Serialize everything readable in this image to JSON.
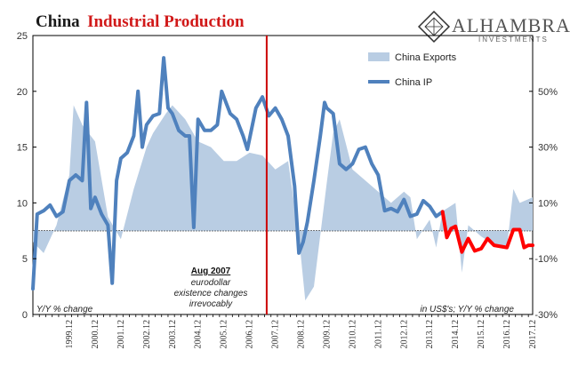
{
  "title_part1": "China",
  "title_part2": "Industrial Production",
  "brand": {
    "name": "ALHAMBRA",
    "sub": "INVESTMENTS"
  },
  "legend": {
    "exports": "China Exports",
    "ip": "China IP"
  },
  "annotation": {
    "heading": "Aug 2007",
    "line1": "eurodollar",
    "line2": "existence changes",
    "line3": "irrevocably"
  },
  "left_note": "Y/Y % change",
  "right_note": "in US$'s; Y/Y % change",
  "colors": {
    "exports": "#b9cde3",
    "ip": "#4f81bd",
    "ip_recent": "#ff0000",
    "event_line": "#cc0000",
    "zero_line": "#000000"
  },
  "chart_data": {
    "type": "line",
    "title": "China Industrial Production",
    "y_left": {
      "min": 0,
      "max": 25,
      "ticks": [
        0,
        5,
        10,
        15,
        20,
        25
      ]
    },
    "y_right": {
      "min": -30,
      "max": 70,
      "ticks": [
        -30,
        -10,
        10,
        30,
        50
      ],
      "tick_labels": [
        "-30%",
        "-10%",
        "10%",
        "30%",
        "50%"
      ]
    },
    "x": {
      "start": "1998-07",
      "end": "2017-12",
      "tick_labels": [
        "1999.12",
        "2000.12",
        "2001.12",
        "2002.12",
        "2003.12",
        "2004.12",
        "2005.12",
        "2006.12",
        "2007.12",
        "2008.12",
        "2009.12",
        "2010.12",
        "2011.12",
        "2012.12",
        "2013.12",
        "2014.12",
        "2015.12",
        "2016.12",
        "2017.12"
      ]
    },
    "event": {
      "date": "2007-08",
      "label": "Aug 2007"
    },
    "series": [
      {
        "name": "China Exports",
        "type": "area",
        "axis": "right",
        "points": [
          [
            "1998-07",
            -4
          ],
          [
            "1998-12",
            -8
          ],
          [
            "1999-06",
            2
          ],
          [
            "1999-12",
            20
          ],
          [
            "2000-02",
            45
          ],
          [
            "2000-06",
            38
          ],
          [
            "2000-12",
            32
          ],
          [
            "2001-06",
            5
          ],
          [
            "2001-12",
            -3
          ],
          [
            "2002-06",
            15
          ],
          [
            "2002-12",
            30
          ],
          [
            "2003-03",
            35
          ],
          [
            "2003-09",
            42
          ],
          [
            "2003-12",
            45
          ],
          [
            "2004-06",
            40
          ],
          [
            "2004-12",
            32
          ],
          [
            "2005-06",
            30
          ],
          [
            "2005-12",
            25
          ],
          [
            "2006-06",
            25
          ],
          [
            "2006-12",
            28
          ],
          [
            "2007-06",
            27
          ],
          [
            "2007-12",
            22
          ],
          [
            "2008-06",
            25
          ],
          [
            "2008-11",
            -2
          ],
          [
            "2009-02",
            -25
          ],
          [
            "2009-06",
            -20
          ],
          [
            "2009-12",
            17
          ],
          [
            "2010-03",
            35
          ],
          [
            "2010-06",
            40
          ],
          [
            "2010-12",
            22
          ],
          [
            "2011-06",
            18
          ],
          [
            "2011-12",
            14
          ],
          [
            "2012-06",
            10
          ],
          [
            "2012-12",
            14
          ],
          [
            "2013-03",
            12
          ],
          [
            "2013-06",
            -3
          ],
          [
            "2013-12",
            4
          ],
          [
            "2014-03",
            -6
          ],
          [
            "2014-06",
            7
          ],
          [
            "2014-12",
            10
          ],
          [
            "2015-03",
            -15
          ],
          [
            "2015-06",
            2
          ],
          [
            "2015-12",
            -2
          ],
          [
            "2016-06",
            -5
          ],
          [
            "2016-12",
            -6
          ],
          [
            "2017-03",
            15
          ],
          [
            "2017-06",
            10
          ],
          [
            "2017-12",
            12
          ]
        ]
      },
      {
        "name": "China IP",
        "type": "line",
        "axis": "left",
        "points": [
          [
            "1998-07",
            2.3
          ],
          [
            "1998-09",
            9.0
          ],
          [
            "1998-12",
            9.3
          ],
          [
            "1999-03",
            9.8
          ],
          [
            "1999-06",
            8.8
          ],
          [
            "1999-09",
            9.2
          ],
          [
            "1999-12",
            12.0
          ],
          [
            "2000-03",
            12.5
          ],
          [
            "2000-06",
            12.0
          ],
          [
            "2000-08",
            19.0
          ],
          [
            "2000-10",
            9.5
          ],
          [
            "2000-12",
            10.5
          ],
          [
            "2001-03",
            9.0
          ],
          [
            "2001-06",
            8.0
          ],
          [
            "2001-08",
            2.8
          ],
          [
            "2001-10",
            12.0
          ],
          [
            "2001-12",
            14.0
          ],
          [
            "2002-03",
            14.5
          ],
          [
            "2002-06",
            16.0
          ],
          [
            "2002-08",
            20.0
          ],
          [
            "2002-10",
            15.0
          ],
          [
            "2002-12",
            17.0
          ],
          [
            "2003-03",
            17.8
          ],
          [
            "2003-06",
            18.0
          ],
          [
            "2003-08",
            23.0
          ],
          [
            "2003-10",
            18.5
          ],
          [
            "2003-12",
            18.0
          ],
          [
            "2004-03",
            16.5
          ],
          [
            "2004-06",
            16.0
          ],
          [
            "2004-08",
            16.0
          ],
          [
            "2004-10",
            7.8
          ],
          [
            "2004-12",
            17.5
          ],
          [
            "2005-03",
            16.5
          ],
          [
            "2005-06",
            16.5
          ],
          [
            "2005-09",
            17.0
          ],
          [
            "2005-11",
            20.0
          ],
          [
            "2006-03",
            18.0
          ],
          [
            "2006-06",
            17.5
          ],
          [
            "2006-09",
            16.0
          ],
          [
            "2006-11",
            14.8
          ],
          [
            "2007-03",
            18.5
          ],
          [
            "2007-06",
            19.5
          ],
          [
            "2007-09",
            17.8
          ],
          [
            "2007-12",
            18.5
          ],
          [
            "2008-03",
            17.5
          ],
          [
            "2008-06",
            16.0
          ],
          [
            "2008-09",
            11.5
          ],
          [
            "2008-11",
            5.5
          ],
          [
            "2009-01",
            6.5
          ],
          [
            "2009-03",
            8.3
          ],
          [
            "2009-06",
            12.0
          ],
          [
            "2009-09",
            16.0
          ],
          [
            "2009-11",
            19.0
          ],
          [
            "2009-12",
            18.5
          ],
          [
            "2010-03",
            18.0
          ],
          [
            "2010-06",
            13.5
          ],
          [
            "2010-09",
            13.0
          ],
          [
            "2010-12",
            13.5
          ],
          [
            "2011-03",
            14.8
          ],
          [
            "2011-06",
            15.0
          ],
          [
            "2011-09",
            13.5
          ],
          [
            "2011-12",
            12.5
          ],
          [
            "2012-03",
            9.3
          ],
          [
            "2012-06",
            9.5
          ],
          [
            "2012-09",
            9.2
          ],
          [
            "2012-12",
            10.3
          ],
          [
            "2013-03",
            8.8
          ],
          [
            "2013-06",
            9.0
          ],
          [
            "2013-09",
            10.2
          ],
          [
            "2013-12",
            9.7
          ],
          [
            "2014-03",
            8.8
          ],
          [
            "2014-06",
            9.2
          ]
        ]
      },
      {
        "name": "China IP (recent)",
        "type": "line",
        "axis": "left",
        "points": [
          [
            "2014-06",
            9.2
          ],
          [
            "2014-08",
            6.9
          ],
          [
            "2014-10",
            7.7
          ],
          [
            "2014-12",
            7.9
          ],
          [
            "2015-03",
            5.6
          ],
          [
            "2015-06",
            6.8
          ],
          [
            "2015-09",
            5.7
          ],
          [
            "2015-12",
            5.9
          ],
          [
            "2016-03",
            6.8
          ],
          [
            "2016-06",
            6.2
          ],
          [
            "2016-09",
            6.1
          ],
          [
            "2016-12",
            6.0
          ],
          [
            "2017-03",
            7.6
          ],
          [
            "2017-06",
            7.6
          ],
          [
            "2017-08",
            6.0
          ],
          [
            "2017-10",
            6.2
          ],
          [
            "2017-12",
            6.2
          ]
        ]
      }
    ]
  }
}
